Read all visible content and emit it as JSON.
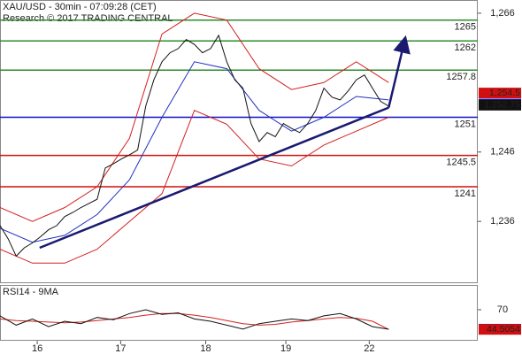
{
  "chart_data": [
    {
      "type": "line",
      "title": "XAU/USD - 30min - 07:09:28 (CET)",
      "subtitle": "Research © 2017 TRADING CENTRAL",
      "xlim": [
        0,
        59
      ],
      "ylim": [
        1227.1,
        1267.9
      ],
      "yticks": [
        {
          "value": 1236,
          "label": "1,236"
        },
        {
          "value": 1246,
          "label": "1,246"
        },
        {
          "value": 1266,
          "label": "1,266"
        }
      ],
      "levels": [
        {
          "value": 1265,
          "color": "#2e8b2e"
        },
        {
          "value": 1262,
          "color": "#2e8b2e"
        },
        {
          "value": 1257.8,
          "color": "#2e8b2e"
        },
        {
          "value": 1251,
          "color": "#1010c8"
        },
        {
          "value": 1245.5,
          "color": "#d01010"
        },
        {
          "value": 1241,
          "color": "#d01010"
        }
      ],
      "series": [
        {
          "color": "#d42020",
          "x": [
            0,
            4,
            8,
            12,
            16,
            20,
            24,
            28,
            32,
            36,
            40,
            44,
            48
          ],
          "values": [
            1238,
            1236,
            1238,
            1241,
            1248,
            1263,
            1266,
            1265,
            1258,
            1255,
            1256,
            1259,
            1256
          ]
        },
        {
          "color": "#d42020",
          "x": [
            0,
            4,
            8,
            12,
            16,
            20,
            24,
            28,
            32,
            36,
            40,
            44,
            48
          ],
          "values": [
            1232,
            1230,
            1230,
            1232,
            1236,
            1240,
            1252,
            1250,
            1245,
            1244,
            1247,
            1249,
            1251
          ]
        },
        {
          "color": "#2030c0",
          "x": [
            0,
            4,
            8,
            12,
            16,
            20,
            24,
            28,
            32,
            36,
            40,
            44,
            48
          ],
          "values": [
            1235,
            1233,
            1234,
            1237,
            1242,
            1251,
            1259,
            1258,
            1252,
            1249,
            1251,
            1254,
            1253.5
          ]
        },
        {
          "color": "#111111",
          "x": [
            0,
            1,
            2,
            3,
            4,
            5,
            6,
            7,
            8,
            9,
            10,
            11,
            12,
            13,
            14,
            15,
            16,
            17,
            18,
            19,
            20,
            21,
            22,
            23,
            24,
            25,
            26,
            27,
            28,
            29,
            30,
            31,
            32,
            33,
            34,
            35,
            36,
            37,
            38,
            39,
            40,
            41,
            42,
            43,
            44,
            45,
            46,
            47,
            48
          ],
          "values": [
            1235.4,
            1233.5,
            1231.0,
            1232.2,
            1232.9,
            1233.8,
            1234.8,
            1235.4,
            1236.7,
            1237.3,
            1238.0,
            1238.6,
            1239.2,
            1243.7,
            1244.3,
            1245.0,
            1245.6,
            1246.3,
            1252.6,
            1256.4,
            1259.0,
            1260.3,
            1260.9,
            1262.2,
            1261.5,
            1260.3,
            1260.9,
            1262.8,
            1259.0,
            1256.4,
            1255.2,
            1250.1,
            1247.5,
            1248.8,
            1248.2,
            1250.1,
            1249.4,
            1248.8,
            1250.1,
            1252.0,
            1255.2,
            1253.9,
            1253.5,
            1254.8,
            1256.4,
            1257.1,
            1255.2,
            1253.3,
            1252.6
          ]
        }
      ],
      "trendline": {
        "color": "#1a1a70",
        "x": [
          4.9,
          48
        ],
        "y": [
          1232.2,
          1252.4
        ]
      },
      "arrow": {
        "color": "#1a1a70",
        "x": [
          48,
          50
        ],
        "y": [
          1252.4,
          1262.2
        ]
      },
      "flags": [
        {
          "value": 1254.5,
          "label": "1,254.5",
          "color": "#d01010"
        },
        {
          "value": 1252.9,
          "label": "1,252.9",
          "color": "#1010c8"
        },
        {
          "value": 1252.75,
          "label": "1,252.75",
          "color": "#111111"
        }
      ]
    },
    {
      "type": "line",
      "title": "RSI14 - 9MA",
      "xlim": [
        0,
        59
      ],
      "ylim": [
        29.8,
        102.1
      ],
      "yticks": [
        70
      ],
      "xticks": [
        {
          "value": 4.6,
          "label": "16"
        },
        {
          "value": 14.9,
          "label": "17"
        },
        {
          "value": 25.4,
          "label": "18"
        },
        {
          "value": 35.3,
          "label": "19"
        },
        {
          "value": 45.6,
          "label": "22"
        }
      ],
      "series": [
        {
          "color": "#d42020",
          "x": [
            0,
            2,
            4,
            6,
            8,
            10,
            12,
            14,
            16,
            18,
            20,
            22,
            24,
            26,
            28,
            30,
            32,
            34,
            36,
            38,
            40,
            42,
            44,
            46,
            48
          ],
          "values": [
            58,
            56,
            55,
            54,
            53,
            54,
            56,
            58,
            60,
            63,
            65,
            65,
            63,
            60,
            56,
            52,
            50,
            51,
            54,
            56,
            58,
            60,
            59,
            55,
            44.5054
          ]
        },
        {
          "color": "#111111",
          "x": [
            0,
            2,
            4,
            6,
            8,
            10,
            12,
            14,
            16,
            18,
            20,
            22,
            24,
            26,
            28,
            30,
            32,
            34,
            36,
            38,
            40,
            42,
            44,
            46,
            48
          ],
          "values": [
            62,
            50,
            58,
            48,
            55,
            52,
            60,
            57,
            65,
            70,
            64,
            66,
            58,
            55,
            50,
            45,
            52,
            55,
            58,
            56,
            62,
            65,
            58,
            48,
            44.7407
          ]
        }
      ],
      "flags": [
        {
          "value": 44.7407,
          "color": "#1010c8"
        },
        {
          "value": 44.5054,
          "color": "#d01010"
        }
      ]
    }
  ]
}
